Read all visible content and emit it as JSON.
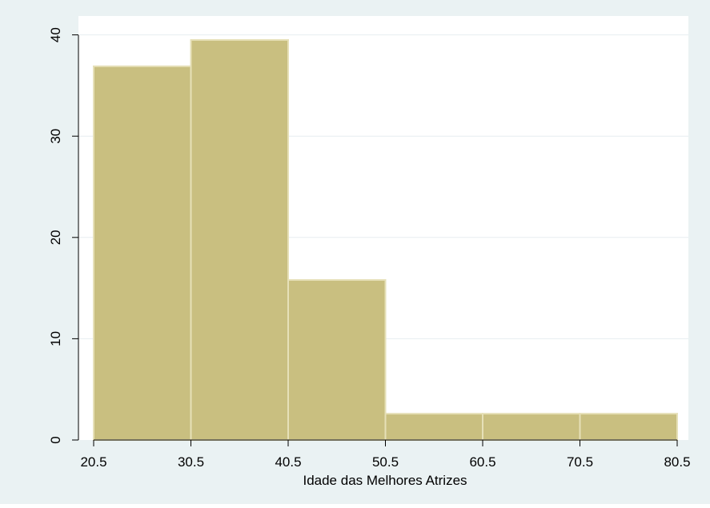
{
  "chart_data": {
    "type": "bar",
    "subtype": "histogram",
    "bin_edges": [
      20.5,
      30.5,
      40.5,
      50.5,
      60.5,
      70.5,
      80.5
    ],
    "values": [
      36.9,
      39.5,
      15.8,
      2.6,
      2.6,
      2.6
    ],
    "xlabel": "Idade das Melhores Atrizes",
    "ylabel": "",
    "xticks": [
      "20.5",
      "30.5",
      "40.5",
      "50.5",
      "60.5",
      "70.5",
      "80.5"
    ],
    "yticks": [
      "0",
      "10",
      "20",
      "30",
      "40"
    ],
    "xlim": [
      20.5,
      80.5
    ],
    "ylim": [
      0,
      41
    ],
    "grid": true,
    "legend": "none"
  },
  "colors": {
    "bar_fill": "#C9BF80",
    "bar_edge": "#E6E0B8",
    "outer_background": "#EAF2F3",
    "plot_background": "#FFFFFF",
    "gridline": "#E7EEF0"
  }
}
